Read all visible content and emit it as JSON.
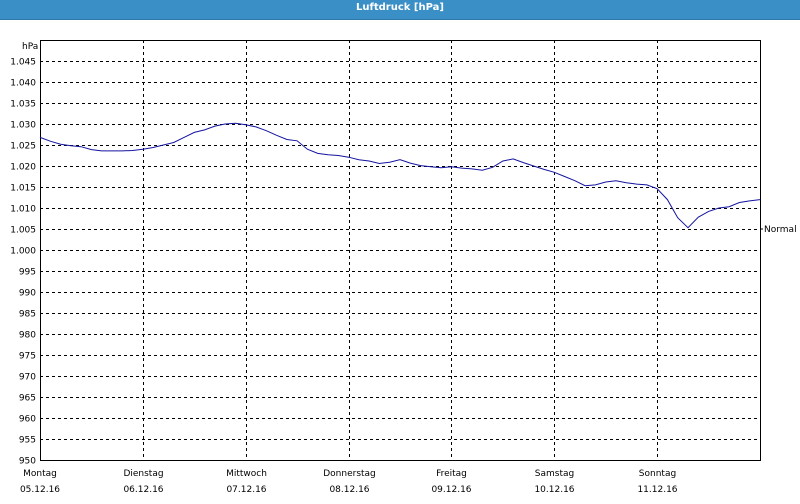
{
  "window": {
    "title": "Luftdruck [hPa]"
  },
  "chart_data": {
    "type": "line",
    "title": "Luftdruck [hPa]",
    "ylabel": "hPa",
    "ylim": [
      950,
      1050
    ],
    "yticks": [
      950,
      955,
      960,
      965,
      970,
      975,
      980,
      985,
      990,
      995,
      1000,
      1005,
      1010,
      1015,
      1020,
      1025,
      1030,
      1035,
      1040,
      1045
    ],
    "ytick_labels": [
      "950",
      "955",
      "960",
      "965",
      "970",
      "975",
      "980",
      "985",
      "990",
      "995",
      "1.000",
      "1.005",
      "1.010",
      "1.015",
      "1.020",
      "1.025",
      "1.030",
      "1.035",
      "1.040",
      "1.045"
    ],
    "xlim": [
      0,
      7
    ],
    "x_categories": [
      {
        "day": "Montag",
        "date": "05.12.16"
      },
      {
        "day": "Dienstag",
        "date": "06.12.16"
      },
      {
        "day": "Mittwoch",
        "date": "07.12.16"
      },
      {
        "day": "Donnerstag",
        "date": "08.12.16"
      },
      {
        "day": "Freitag",
        "date": "09.12.16"
      },
      {
        "day": "Samstag",
        "date": "10.12.16"
      },
      {
        "day": "Sonntag",
        "date": "11.12.16"
      }
    ],
    "grid": true,
    "reference_line": {
      "label": "Normal",
      "value": 1005
    },
    "series": [
      {
        "color": "#1414a0",
        "x": [
          0,
          0.1,
          0.2,
          0.3,
          0.4,
          0.5,
          0.6,
          0.7,
          0.8,
          0.9,
          1.0,
          1.1,
          1.2,
          1.3,
          1.4,
          1.5,
          1.6,
          1.7,
          1.8,
          1.9,
          2.0,
          2.1,
          2.2,
          2.3,
          2.4,
          2.5,
          2.6,
          2.7,
          2.8,
          2.9,
          3.0,
          3.1,
          3.2,
          3.3,
          3.4,
          3.5,
          3.6,
          3.7,
          3.8,
          3.9,
          4.0,
          4.1,
          4.2,
          4.3,
          4.4,
          4.5,
          4.6,
          4.7,
          4.8,
          4.9,
          5.0,
          5.1,
          5.2,
          5.3,
          5.4,
          5.5,
          5.6,
          5.7,
          5.8,
          5.9,
          6.0,
          6.1,
          6.2,
          6.3,
          6.4,
          6.5,
          6.6,
          6.7,
          6.8,
          6.9,
          7.0
        ],
        "values": [
          1026.8,
          1025.9,
          1025.2,
          1024.8,
          1024.6,
          1023.9,
          1023.6,
          1023.6,
          1023.6,
          1023.7,
          1024.0,
          1024.4,
          1025.0,
          1025.6,
          1026.8,
          1028.0,
          1028.6,
          1029.5,
          1030.0,
          1030.2,
          1029.8,
          1029.3,
          1028.4,
          1027.3,
          1026.3,
          1026.0,
          1024.0,
          1023.0,
          1022.7,
          1022.5,
          1022.1,
          1021.5,
          1021.2,
          1020.6,
          1020.9,
          1021.5,
          1020.7,
          1020.1,
          1019.8,
          1019.6,
          1019.8,
          1019.5,
          1019.3,
          1019.0,
          1019.7,
          1021.2,
          1021.7,
          1020.8,
          1020.0,
          1019.2,
          1018.5,
          1017.5,
          1016.5,
          1015.3,
          1015.5,
          1016.2,
          1016.5,
          1016.0,
          1015.7,
          1015.5,
          1014.6,
          1012.0,
          1007.7,
          1005.3,
          1007.8,
          1009.2,
          1010.0,
          1010.3,
          1011.3,
          1011.7,
          1012.0
        ]
      }
    ]
  }
}
